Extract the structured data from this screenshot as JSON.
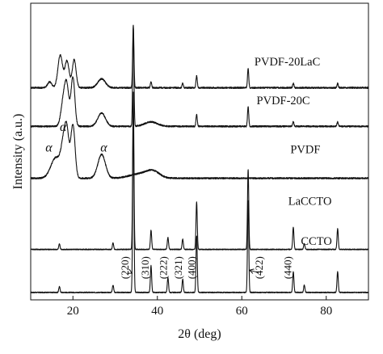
{
  "chart_data": {
    "type": "line",
    "xlabel": "2θ (deg)",
    "ylabel": "Intensity (a.u.)",
    "xlim": [
      10,
      90
    ],
    "ylim": [
      0,
      100
    ],
    "grid": false,
    "legend": "none",
    "x_ticks": [
      20,
      40,
      60,
      80
    ],
    "x_tick_labels": [
      "20",
      "40",
      "60",
      "80"
    ],
    "series": [
      {
        "name": "CCTO",
        "baseline": 2.5,
        "noise": 0.15,
        "humps": [],
        "peaks": [
          {
            "x": 16.8,
            "h": 2.0,
            "w": 0.15
          },
          {
            "x": 29.5,
            "h": 2.5,
            "w": 0.15
          },
          {
            "x": 34.3,
            "h": 60.0,
            "w": 0.15
          },
          {
            "x": 38.5,
            "h": 9.0,
            "w": 0.15
          },
          {
            "x": 42.5,
            "h": 5.0,
            "w": 0.15
          },
          {
            "x": 46.0,
            "h": 4.5,
            "w": 0.15
          },
          {
            "x": 49.3,
            "h": 19.0,
            "w": 0.15
          },
          {
            "x": 61.5,
            "h": 31.0,
            "w": 0.15
          },
          {
            "x": 72.2,
            "h": 7.0,
            "w": 0.15
          },
          {
            "x": 74.8,
            "h": 2.5,
            "w": 0.15
          },
          {
            "x": 82.7,
            "h": 7.0,
            "w": 0.15
          }
        ]
      },
      {
        "name": "LaCCTO",
        "baseline": 17.0,
        "noise": 0.15,
        "humps": [],
        "peaks": [
          {
            "x": 16.8,
            "h": 1.8,
            "w": 0.15
          },
          {
            "x": 29.5,
            "h": 2.2,
            "w": 0.15
          },
          {
            "x": 34.3,
            "h": 53.0,
            "w": 0.15
          },
          {
            "x": 38.5,
            "h": 6.5,
            "w": 0.15
          },
          {
            "x": 42.5,
            "h": 4.0,
            "w": 0.15
          },
          {
            "x": 46.0,
            "h": 3.5,
            "w": 0.15
          },
          {
            "x": 49.3,
            "h": 16.0,
            "w": 0.15
          },
          {
            "x": 61.5,
            "h": 27.0,
            "w": 0.15
          },
          {
            "x": 72.2,
            "h": 7.5,
            "w": 0.15
          },
          {
            "x": 74.8,
            "h": 2.0,
            "w": 0.15
          },
          {
            "x": 82.7,
            "h": 7.0,
            "w": 0.15
          }
        ]
      },
      {
        "name": "PVDF",
        "baseline": 41.0,
        "noise": 0.25,
        "humps": [
          {
            "x": 16.0,
            "h": 7.0,
            "w": 1.2
          },
          {
            "x": 17.8,
            "h": 10.0,
            "w": 0.6
          },
          {
            "x": 18.6,
            "h": 13.0,
            "w": 0.5
          },
          {
            "x": 20.0,
            "h": 18.0,
            "w": 0.5
          },
          {
            "x": 26.8,
            "h": 8.0,
            "w": 0.9
          },
          {
            "x": 36.0,
            "h": 1.5,
            "w": 2.5
          },
          {
            "x": 39.0,
            "h": 2.0,
            "w": 1.5
          }
        ],
        "peaks": []
      },
      {
        "name": "PVDF-20C",
        "baseline": 58.5,
        "noise": 0.25,
        "humps": [
          {
            "x": 17.8,
            "h": 9.0,
            "w": 0.6
          },
          {
            "x": 18.6,
            "h": 11.0,
            "w": 0.5
          },
          {
            "x": 20.0,
            "h": 16.5,
            "w": 0.45
          },
          {
            "x": 26.8,
            "h": 4.5,
            "w": 0.9
          },
          {
            "x": 38.5,
            "h": 1.5,
            "w": 1.5
          }
        ],
        "peaks": [
          {
            "x": 34.3,
            "h": 33.0,
            "w": 0.15
          },
          {
            "x": 49.3,
            "h": 4.0,
            "w": 0.15
          },
          {
            "x": 61.5,
            "h": 6.5,
            "w": 0.15
          },
          {
            "x": 72.2,
            "h": 1.5,
            "w": 0.15
          },
          {
            "x": 82.7,
            "h": 1.5,
            "w": 0.15
          }
        ]
      },
      {
        "name": "PVDF-20LaC",
        "baseline": 71.5,
        "noise": 0.25,
        "humps": [
          {
            "x": 14.5,
            "h": 2.0,
            "w": 0.5
          },
          {
            "x": 17.0,
            "h": 11.0,
            "w": 0.55
          },
          {
            "x": 18.6,
            "h": 9.0,
            "w": 0.5
          },
          {
            "x": 20.3,
            "h": 9.5,
            "w": 0.45
          },
          {
            "x": 26.8,
            "h": 3.0,
            "w": 0.9
          }
        ],
        "peaks": [
          {
            "x": 34.3,
            "h": 21.0,
            "w": 0.15
          },
          {
            "x": 38.5,
            "h": 2.0,
            "w": 0.15
          },
          {
            "x": 46.0,
            "h": 1.5,
            "w": 0.15
          },
          {
            "x": 49.3,
            "h": 4.0,
            "w": 0.15
          },
          {
            "x": 61.5,
            "h": 6.5,
            "w": 0.15
          },
          {
            "x": 72.2,
            "h": 1.5,
            "w": 0.15
          },
          {
            "x": 82.7,
            "h": 1.5,
            "w": 0.15
          }
        ]
      }
    ],
    "series_labels": [
      {
        "text": "PVDF-20LaC",
        "x": 63.0,
        "y": 79.0
      },
      {
        "text": "PVDF-20C",
        "x": 63.5,
        "y": 66.0
      },
      {
        "text": "PVDF",
        "x": 71.5,
        "y": 49.5
      },
      {
        "text": "LaCCTO",
        "x": 71.0,
        "y": 32.0
      },
      {
        "text": "CCTO",
        "x": 74.0,
        "y": 18.5
      }
    ],
    "peak_annotations": [
      {
        "text": "(220)",
        "x": 32.2,
        "y": 7.0,
        "arrow_to_x": 34.0,
        "arrow_to_y": 9.0
      },
      {
        "text": "(310)",
        "x": 37.0,
        "y": 7.0
      },
      {
        "text": "(222)",
        "x": 41.3,
        "y": 7.0
      },
      {
        "text": "(321)",
        "x": 44.8,
        "y": 7.0
      },
      {
        "text": "(400)",
        "x": 48.0,
        "y": 7.0
      },
      {
        "text": "(422)",
        "x": 64.0,
        "y": 7.0,
        "arrow_to_x": 61.8,
        "arrow_to_y": 10.0
      },
      {
        "text": "(440)",
        "x": 70.8,
        "y": 7.0
      }
    ],
    "alpha_annotations": [
      {
        "text": "α",
        "x": 13.5,
        "y": 50.0
      },
      {
        "text": "α",
        "x": 16.9,
        "y": 57.0
      },
      {
        "text": "α",
        "x": 26.5,
        "y": 50.0
      }
    ]
  }
}
